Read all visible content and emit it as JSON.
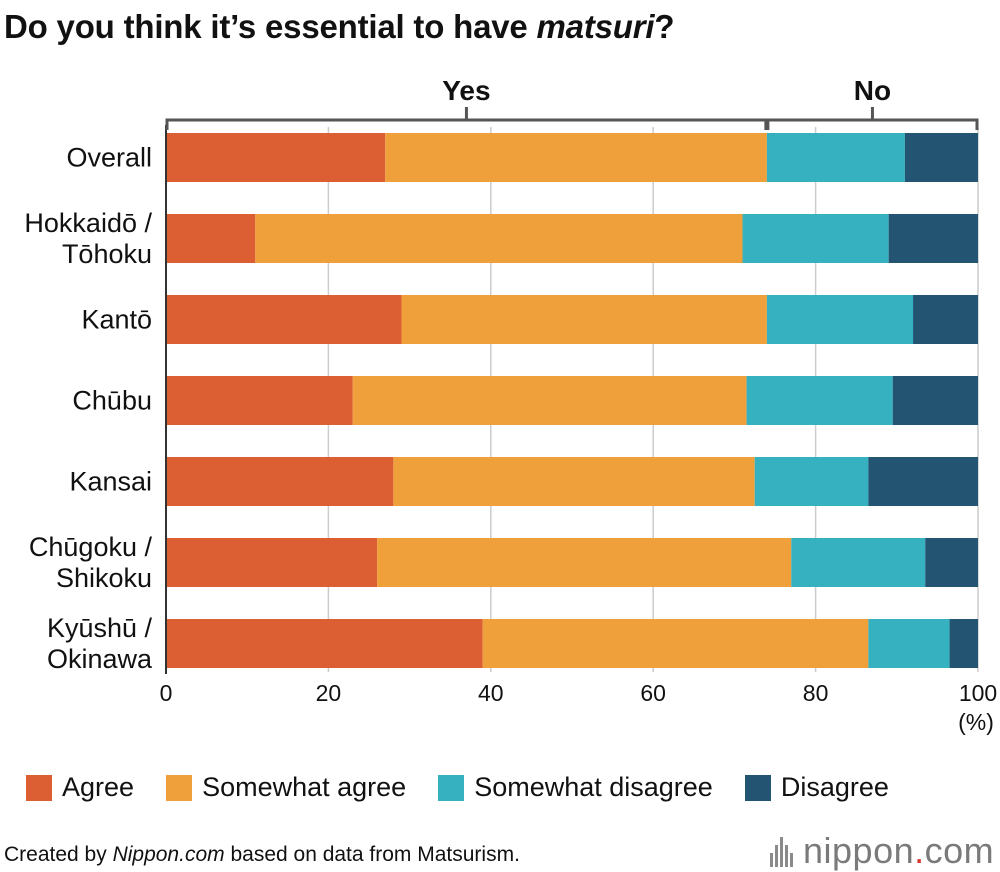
{
  "title": {
    "prefix": "Do you think it’s essential to have ",
    "emphasis": "matsuri",
    "suffix": "?"
  },
  "colors": {
    "agree": "#dc5f33",
    "somewhat_agree": "#f0a03b",
    "somewhat_disagree": "#35b1bf",
    "disagree": "#235573",
    "grid": "#cccccc",
    "bracket": "#555555"
  },
  "chart_data": {
    "type": "bar",
    "orientation": "horizontal",
    "stacked": true,
    "categories": [
      [
        "Overall"
      ],
      [
        "Hokkaidō /",
        "Tōhoku"
      ],
      [
        "Kantō"
      ],
      [
        "Chūbu"
      ],
      [
        "Kansai"
      ],
      [
        "Chūgoku /",
        "Shikoku"
      ],
      [
        "Kyūshū /",
        "Okinawa"
      ]
    ],
    "series": [
      {
        "name": "Agree",
        "color_key": "agree",
        "values": [
          27,
          11,
          29,
          23,
          28,
          26,
          39
        ]
      },
      {
        "name": "Somewhat agree",
        "color_key": "somewhat_agree",
        "values": [
          47,
          60,
          45,
          48.5,
          44.5,
          51,
          47.5
        ]
      },
      {
        "name": "Somewhat disagree",
        "color_key": "somewhat_disagree",
        "values": [
          17,
          18,
          18,
          18,
          14,
          16.5,
          10
        ]
      },
      {
        "name": "Disagree",
        "color_key": "disagree",
        "values": [
          9,
          11,
          8,
          10.5,
          13.5,
          6.5,
          3.5
        ]
      }
    ],
    "xlim": [
      0,
      100
    ],
    "xticks": [
      0,
      20,
      40,
      60,
      80,
      100
    ],
    "xunit": "(%)",
    "grid": true,
    "legend": "bottom",
    "group_brackets": [
      {
        "label": "Yes",
        "from": 0,
        "to": 74
      },
      {
        "label": "No",
        "from": 74,
        "to": 100
      }
    ]
  },
  "footer": {
    "prefix": "Created by ",
    "emphasis": "Nippon.com",
    "suffix": " based on data from Matsurism."
  },
  "brand": {
    "name": "nippon",
    "dot": ".",
    "tld": "com"
  }
}
